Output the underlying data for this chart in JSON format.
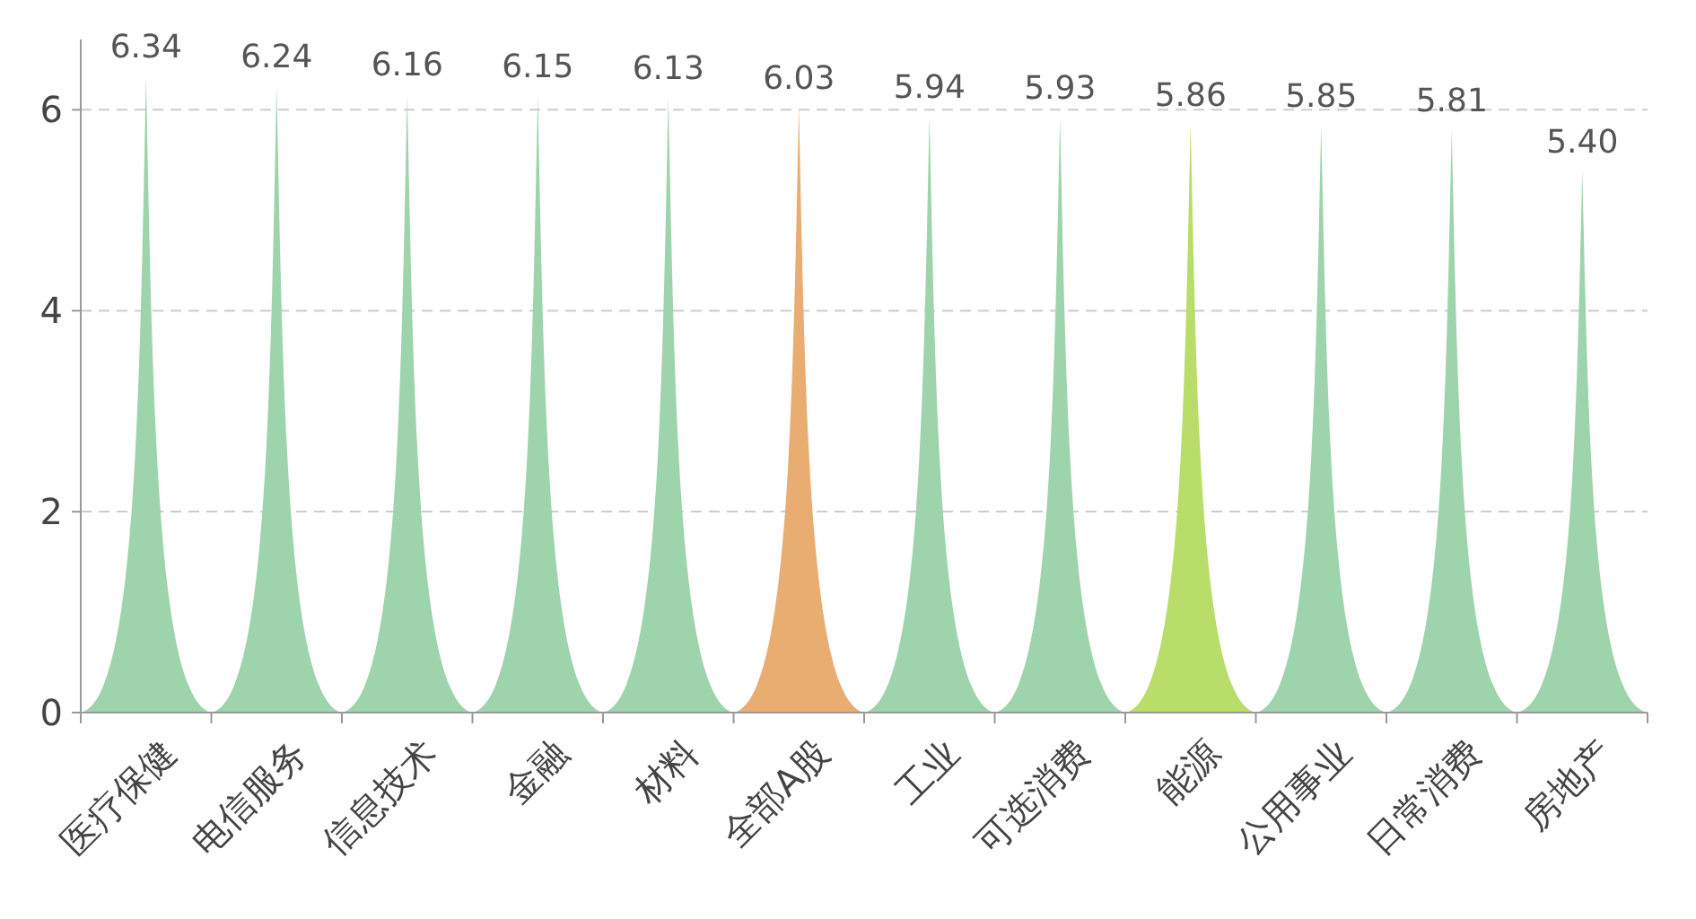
{
  "chart_data": {
    "type": "bar",
    "categories": [
      "医疗保健",
      "电信服务",
      "信息技术",
      "金融",
      "材料",
      "全部A股",
      "工业",
      "可选消费",
      "能源",
      "公用事业",
      "日常消费",
      "房地产"
    ],
    "values": [
      6.34,
      6.24,
      6.16,
      6.15,
      6.13,
      6.03,
      5.94,
      5.93,
      5.86,
      5.85,
      5.81,
      5.4
    ],
    "value_labels": [
      "6.34",
      "6.24",
      "6.16",
      "6.15",
      "6.13",
      "6.03",
      "5.94",
      "5.93",
      "5.86",
      "5.85",
      "5.81",
      "5.40"
    ],
    "colors": [
      "#9dd4ac",
      "#9dd4ac",
      "#9dd4ac",
      "#9dd4ac",
      "#9dd4ac",
      "#e9ad72",
      "#9dd4ac",
      "#9dd4ac",
      "#b8dd68",
      "#9dd4ac",
      "#9dd4ac",
      "#9dd4ac"
    ],
    "ylim": [
      0,
      6.7
    ],
    "yticks": [
      0,
      2,
      4,
      6
    ],
    "grid": "y"
  }
}
